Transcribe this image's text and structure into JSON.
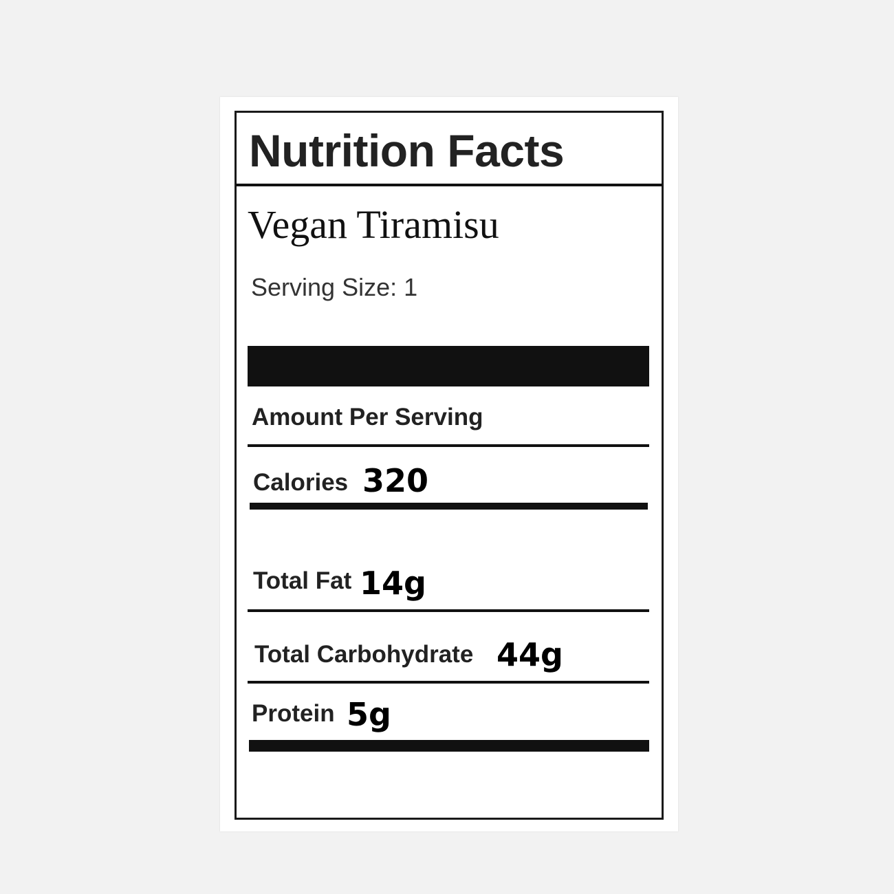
{
  "label": {
    "title": "Nutrition Facts",
    "product_name": "Vegan Tiramisu",
    "serving_size": "Serving Size: 1",
    "amount_per_serving": "Amount Per Serving",
    "nutrients": [
      {
        "label": "Calories",
        "value": "320"
      },
      {
        "label": "Total Fat",
        "value": "14g"
      },
      {
        "label": "Total Carbohydrate",
        "value": "44g"
      },
      {
        "label": "Protein",
        "value": "5g"
      }
    ]
  }
}
